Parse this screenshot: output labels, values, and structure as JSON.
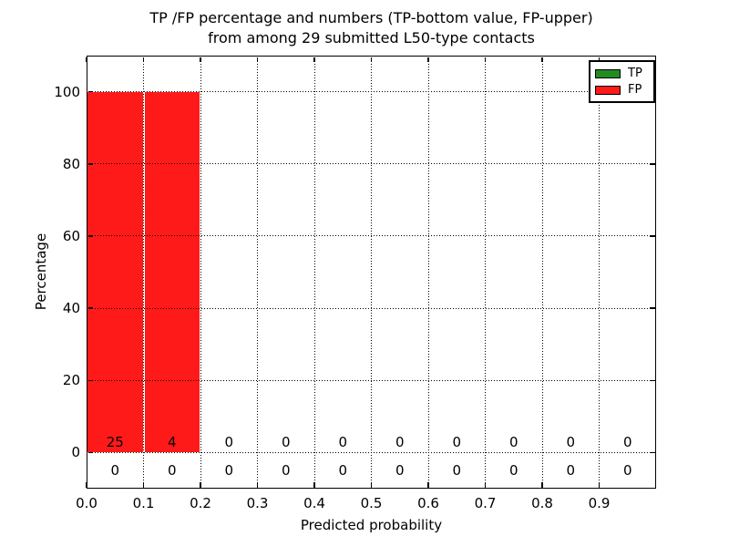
{
  "chart_data": {
    "type": "bar",
    "stacked": true,
    "title_line1": "TP /FP percentage and numbers (TP-bottom value, FP-upper)",
    "title_line2": "from among 29 submitted L50-type contacts",
    "xlabel": "Predicted probability",
    "ylabel": "Percentage",
    "xlim": [
      0.0,
      1.0
    ],
    "ylim": [
      -10,
      110
    ],
    "grid_style": "dotted",
    "legend_position": "upper right",
    "xticks": {
      "values": [
        0.0,
        0.1,
        0.2,
        0.3,
        0.4,
        0.5,
        0.6,
        0.7,
        0.8,
        0.9
      ],
      "labels": [
        "0.0",
        "0.1",
        "0.2",
        "0.3",
        "0.4",
        "0.5",
        "0.6",
        "0.7",
        "0.8",
        "0.9"
      ]
    },
    "yticks": {
      "values": [
        0,
        20,
        40,
        60,
        80,
        100
      ],
      "labels": [
        "0",
        "20",
        "40",
        "60",
        "80",
        "100"
      ]
    },
    "bins": {
      "left_edges": [
        0.0,
        0.1,
        0.2,
        0.3,
        0.4,
        0.5,
        0.6,
        0.7,
        0.8,
        0.9
      ],
      "width": 0.1
    },
    "series": [
      {
        "name": "TP",
        "color": "#228b22",
        "percent": [
          0,
          0,
          0,
          0,
          0,
          0,
          0,
          0,
          0,
          0
        ],
        "counts": [
          0,
          0,
          0,
          0,
          0,
          0,
          0,
          0,
          0,
          0
        ],
        "count_label_y": -5
      },
      {
        "name": "FP",
        "color": "#ff1a1a",
        "percent": [
          100,
          100,
          0,
          0,
          0,
          0,
          0,
          0,
          0,
          0
        ],
        "counts": [
          25,
          4,
          0,
          0,
          0,
          0,
          0,
          0,
          0,
          0
        ],
        "count_label_y": 3
      }
    ],
    "legend": {
      "entries": [
        {
          "label": "TP",
          "color": "#228b22"
        },
        {
          "label": "FP",
          "color": "#ff1a1a"
        }
      ]
    }
  },
  "colors": {
    "background": "#ffffff",
    "axis": "#000000",
    "text": "#000000",
    "bar_tp": "#228b22",
    "bar_fp": "#ff1a1a"
  }
}
